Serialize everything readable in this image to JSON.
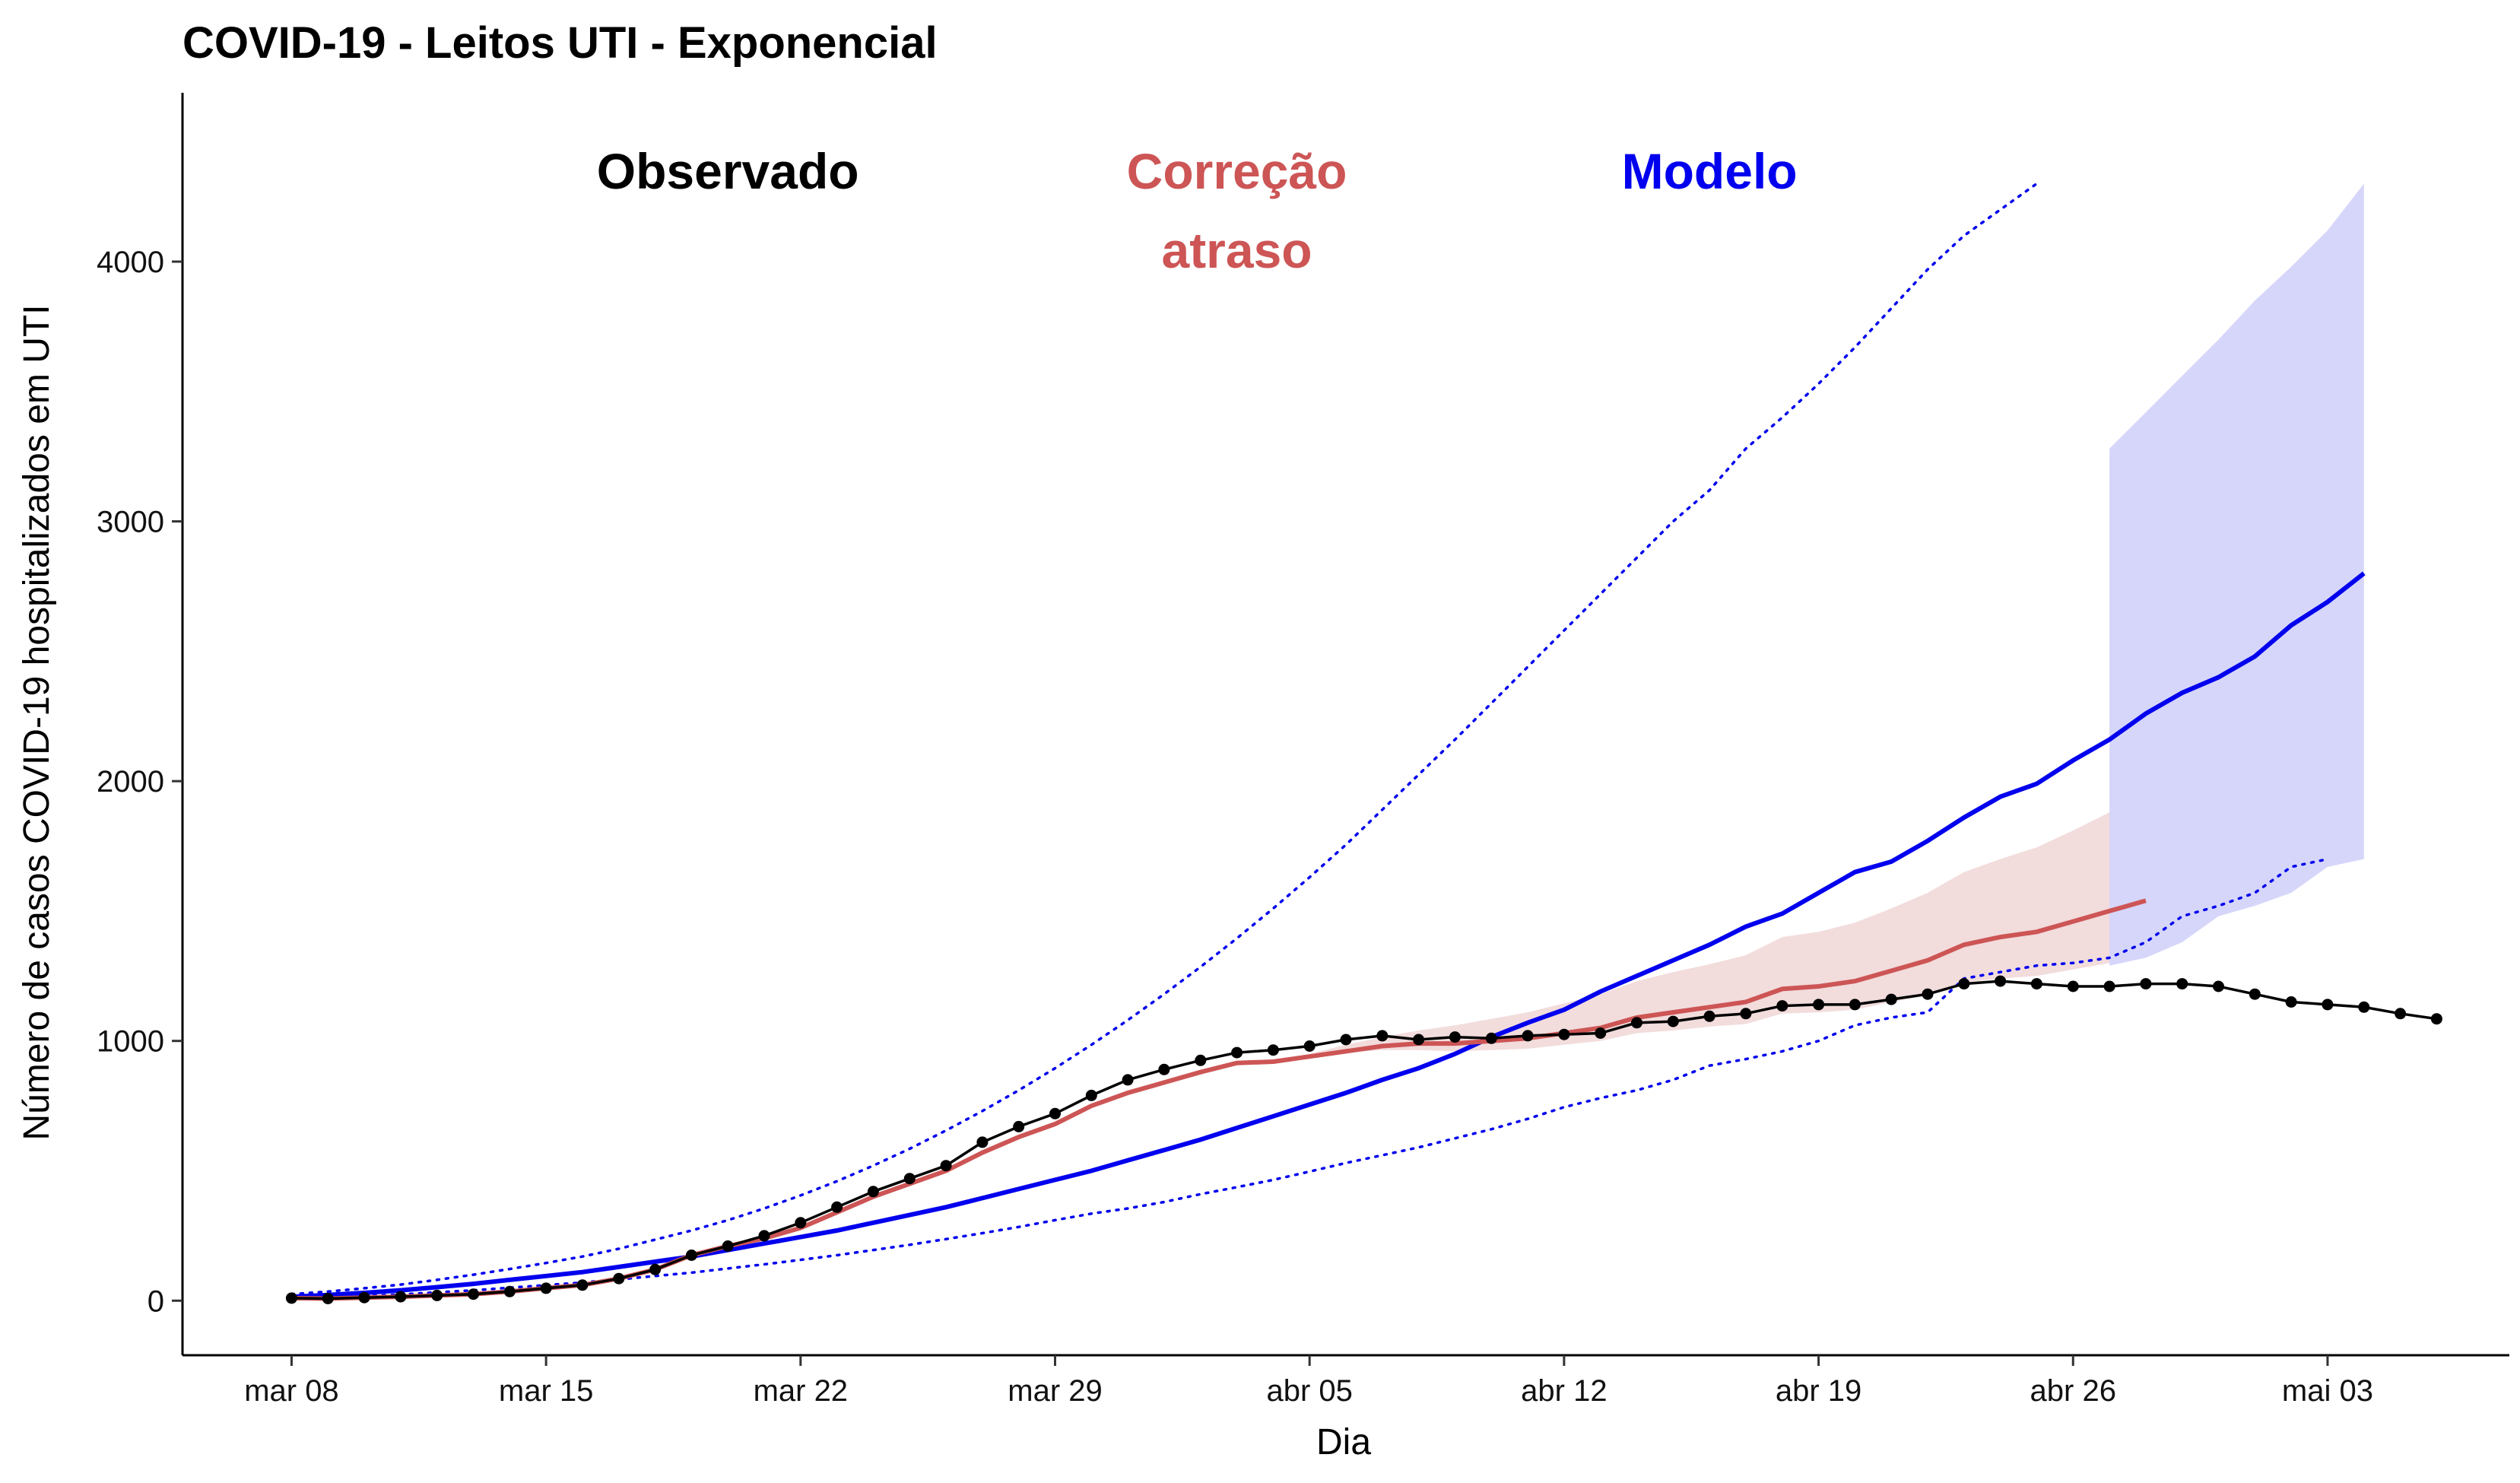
{
  "chart_data": {
    "type": "line",
    "title": "COVID-19 - Leitos UTI - Exponencial",
    "xlabel": "Dia",
    "ylabel": "Número de casos COVID-19 hospitalizados em UTI",
    "ylim": [
      -210,
      4650
    ],
    "yticks": [
      0,
      1000,
      2000,
      3000,
      4000
    ],
    "ytick_labels": [
      "0",
      "1000",
      "2000",
      "3000",
      "4000"
    ],
    "xlim": [
      "2020-03-05",
      "2020-05-08"
    ],
    "xticks": [
      "2020-03-08",
      "2020-03-15",
      "2020-03-22",
      "2020-03-29",
      "2020-04-05",
      "2020-04-12",
      "2020-04-19",
      "2020-04-26",
      "2020-05-03"
    ],
    "xtick_labels": [
      "mar 08",
      "mar 15",
      "mar 22",
      "mar 29",
      "abr 05",
      "abr 12",
      "abr 19",
      "abr 26",
      "mai 03"
    ],
    "grid": false,
    "annotations": [
      {
        "text": [
          "Observado"
        ],
        "x": "2020-03-20",
        "color": "#000000"
      },
      {
        "text": [
          "Correção",
          "atraso"
        ],
        "x": "2020-04-03",
        "color": "#CD5555"
      },
      {
        "text": [
          "Modelo"
        ],
        "x": "2020-04-16",
        "color": "#0000EE"
      }
    ],
    "colors": {
      "observed": "#000000",
      "correction": "#CD5555",
      "correction_band": "#F2DCDC",
      "model": "#0000EE",
      "model_band": "#D6D6FA"
    },
    "start_date": "2020-03-08",
    "observed": [
      10,
      8,
      12,
      15,
      20,
      25,
      35,
      48,
      60,
      85,
      120,
      175,
      210,
      250,
      300,
      360,
      420,
      470,
      520,
      610,
      670,
      720,
      790,
      850,
      890,
      925,
      955,
      965,
      980,
      1005,
      1020,
      1005,
      1015,
      1010,
      1020,
      1025,
      1030,
      1070,
      1075,
      1095,
      1105,
      1135,
      1140,
      1140,
      1160,
      1180,
      1220,
      1230,
      1220,
      1210,
      1210,
      1220,
      1220,
      1210,
      1180,
      1150,
      1140,
      1130,
      1105,
      1085
    ],
    "correction": [
      10,
      8,
      12,
      15,
      20,
      25,
      35,
      48,
      60,
      85,
      120,
      175,
      210,
      240,
      280,
      340,
      400,
      450,
      500,
      570,
      630,
      680,
      750,
      800,
      840,
      880,
      915,
      920,
      940,
      960,
      980,
      990,
      990,
      1000,
      1010,
      1030,
      1050,
      1090,
      1110,
      1130,
      1150,
      1200,
      1210,
      1230,
      1270,
      1310,
      1370,
      1400,
      1420,
      1460,
      1500,
      1540
    ],
    "correction_lower": [
      10,
      8,
      12,
      15,
      20,
      25,
      35,
      48,
      60,
      85,
      120,
      175,
      210,
      240,
      280,
      340,
      400,
      450,
      500,
      570,
      630,
      680,
      750,
      800,
      840,
      880,
      915,
      920,
      935,
      955,
      965,
      965,
      960,
      965,
      970,
      985,
      1000,
      1030,
      1040,
      1055,
      1065,
      1105,
      1110,
      1120,
      1150,
      1175,
      1225,
      1240,
      1250,
      1275,
      1300,
      1320
    ],
    "correction_upper": [
      10,
      8,
      12,
      15,
      20,
      25,
      35,
      48,
      60,
      85,
      120,
      175,
      210,
      240,
      280,
      340,
      400,
      450,
      500,
      570,
      630,
      680,
      750,
      800,
      840,
      880,
      915,
      925,
      950,
      985,
      1015,
      1040,
      1060,
      1085,
      1110,
      1145,
      1180,
      1230,
      1265,
      1295,
      1330,
      1400,
      1420,
      1455,
      1510,
      1570,
      1650,
      1700,
      1745,
      1810,
      1880,
      1970
    ],
    "model_start_date": "2020-03-08",
    "model": [
      15,
      22,
      30,
      40,
      52,
      65,
      80,
      95,
      110,
      130,
      150,
      170,
      195,
      220,
      245,
      270,
      300,
      330,
      360,
      395,
      430,
      465,
      500,
      540,
      580,
      620,
      665,
      710,
      755,
      800,
      850,
      895,
      950,
      1015,
      1070,
      1120,
      1190,
      1250,
      1310,
      1370,
      1440,
      1490,
      1570,
      1650,
      1690,
      1770,
      1860,
      1940,
      1990,
      2080,
      2160,
      2260,
      2340,
      2400,
      2480,
      2600,
      2690,
      2800
    ],
    "model_lower": [
      8,
      12,
      18,
      24,
      32,
      40,
      50,
      60,
      70,
      82,
      95,
      108,
      124,
      140,
      157,
      175,
      195,
      215,
      237,
      260,
      284,
      310,
      335,
      355,
      380,
      410,
      437,
      465,
      497,
      530,
      560,
      590,
      625,
      660,
      700,
      745,
      780,
      810,
      850,
      905,
      930,
      960,
      1000,
      1060,
      1090,
      1110,
      1240,
      1265,
      1290,
      1300,
      1320,
      1380,
      1480,
      1520,
      1570,
      1670,
      1700
    ],
    "model_upper": [
      25,
      35,
      48,
      62,
      80,
      100,
      122,
      145,
      170,
      200,
      235,
      270,
      310,
      355,
      405,
      460,
      520,
      585,
      655,
      730,
      810,
      895,
      985,
      1080,
      1180,
      1285,
      1395,
      1510,
      1630,
      1755,
      1890,
      2025,
      2160,
      2300,
      2440,
      2580,
      2720,
      2860,
      3000,
      3120,
      3280,
      3400,
      3530,
      3670,
      3820,
      3970,
      4100,
      4200,
      4300
    ],
    "model_upper_start_date": "2020-03-08",
    "model_band_start_date": "2020-04-27",
    "model_band_lower": [
      1290,
      1320,
      1380,
      1480,
      1520,
      1570,
      1670,
      1700
    ],
    "model_band_upper": [
      3280,
      3420,
      3560,
      3700,
      3850,
      3980,
      4120,
      4300
    ]
  }
}
